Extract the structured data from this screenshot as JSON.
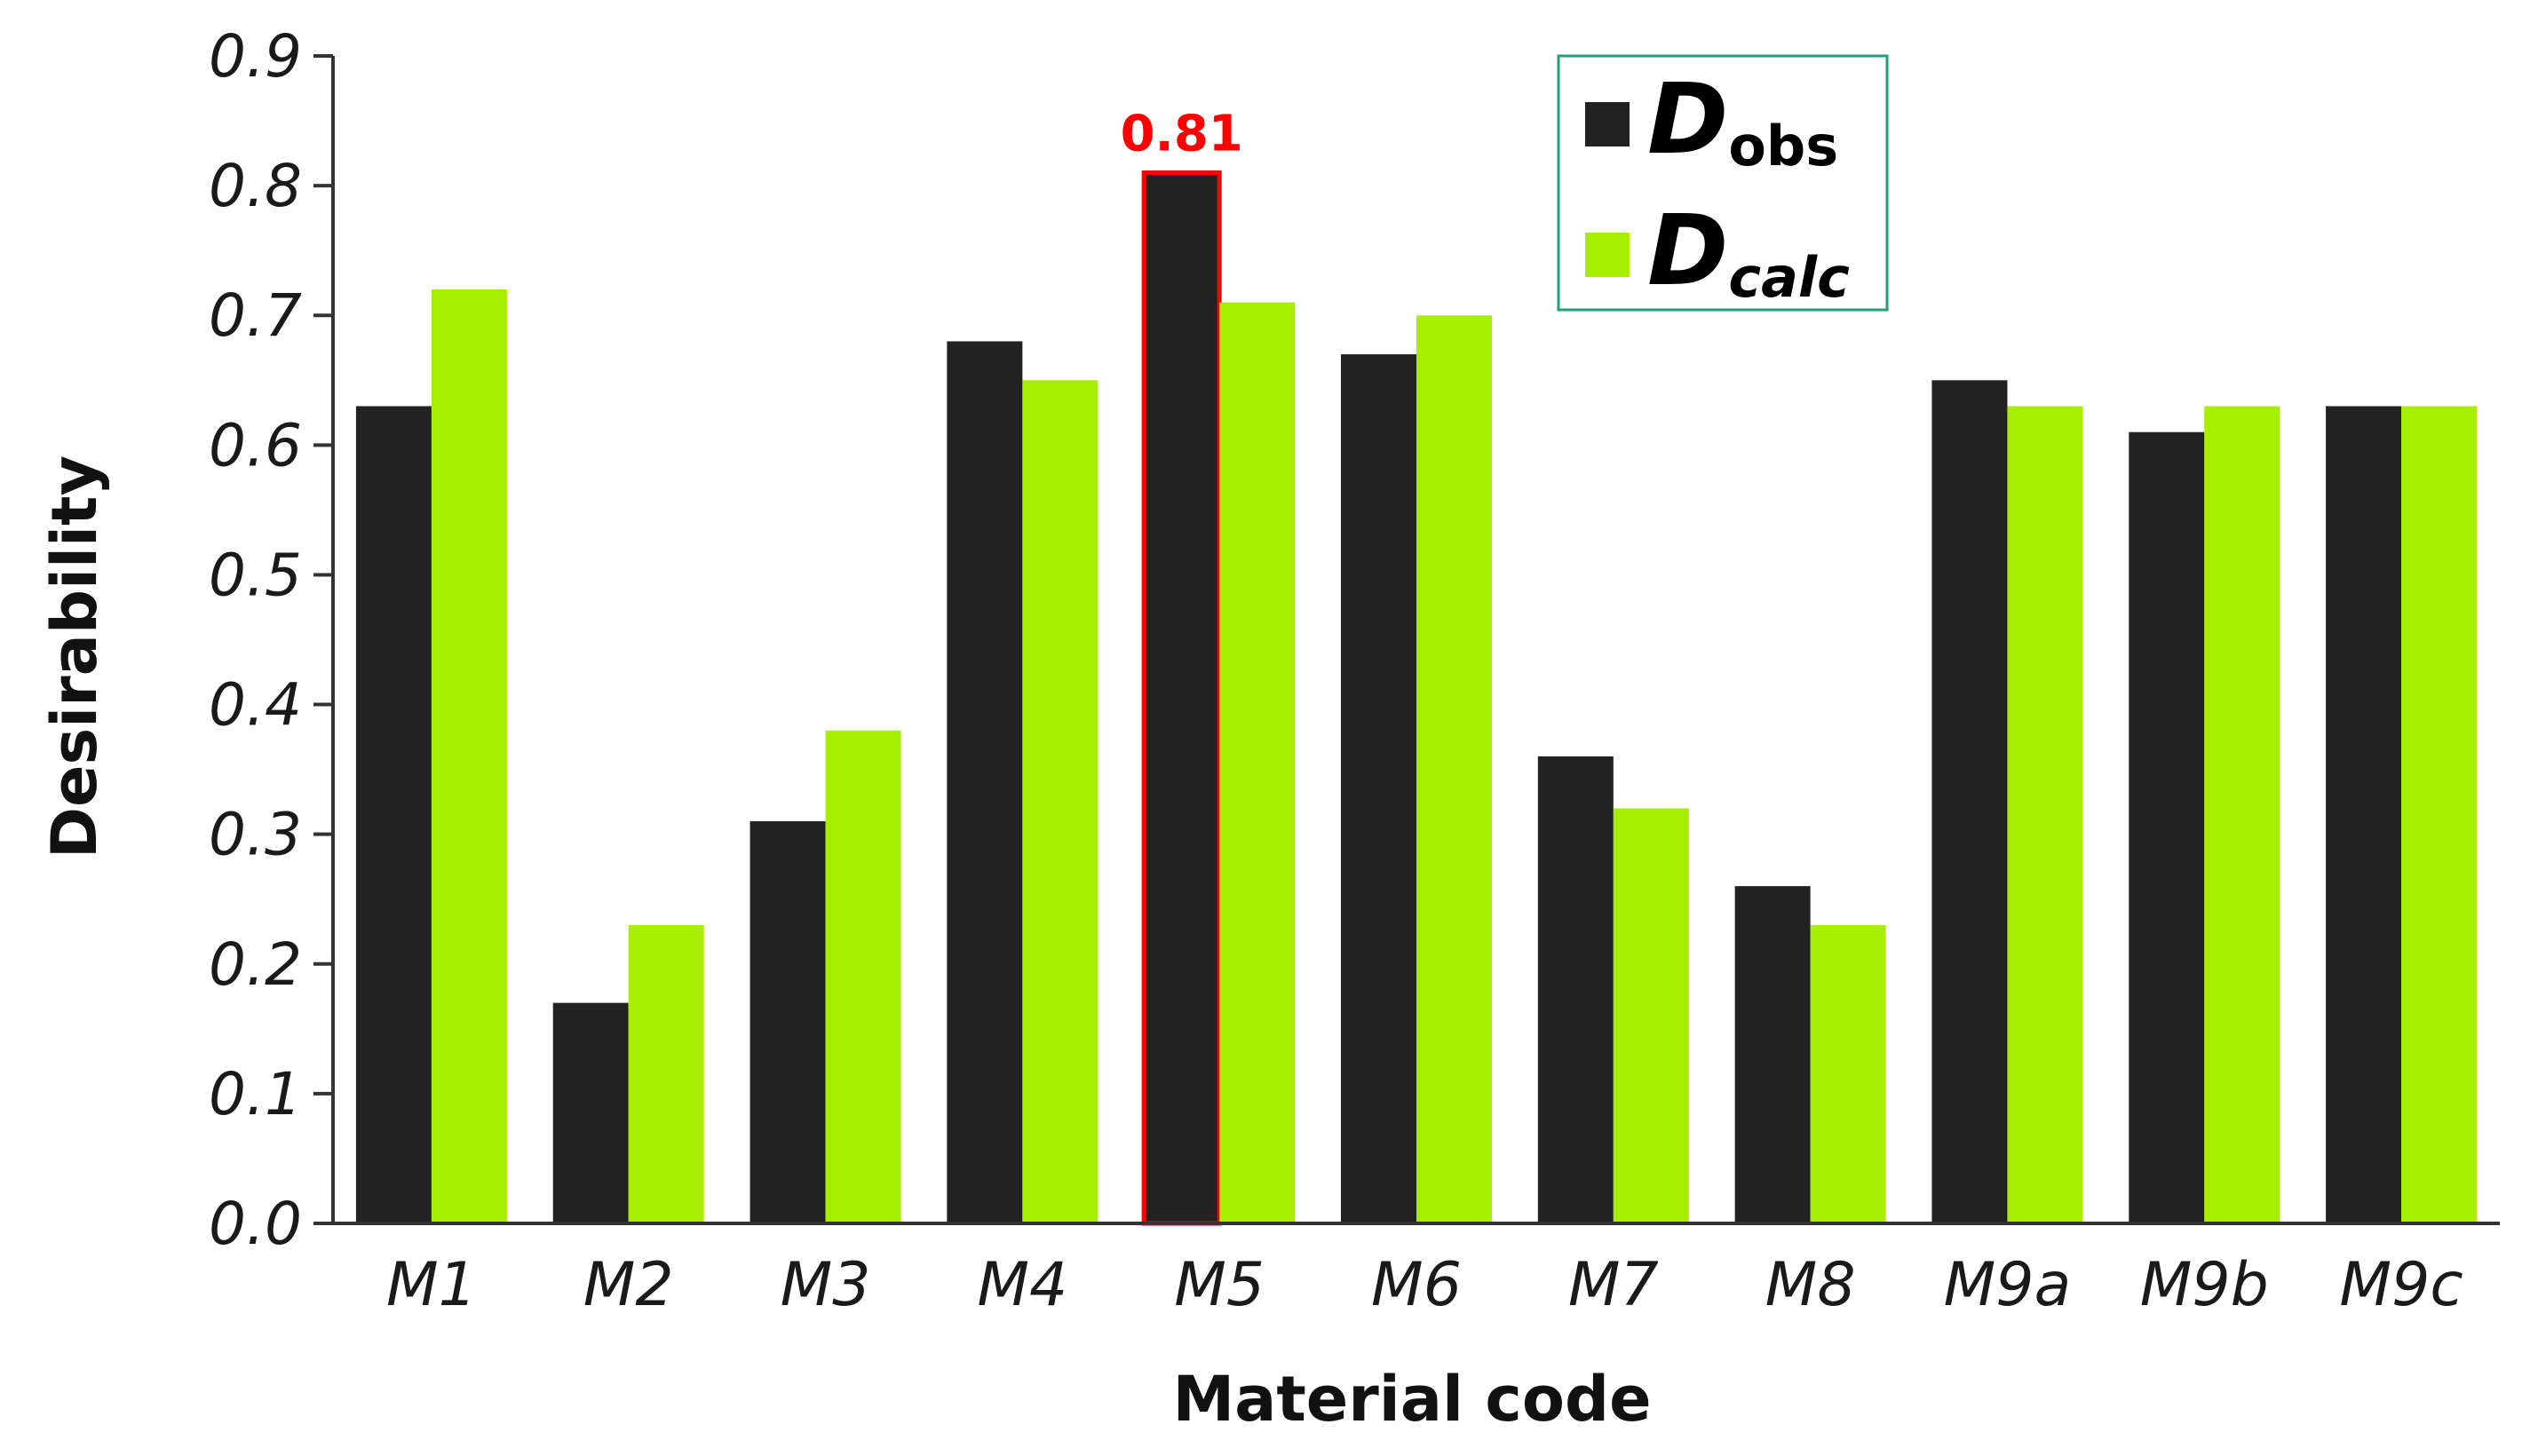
{
  "chart_data": {
    "type": "bar",
    "title": "",
    "xlabel": "Material code",
    "ylabel": "Desirability",
    "ylim": [
      0,
      0.9
    ],
    "yticks": [
      "0.0",
      "0.1",
      "0.2",
      "0.3",
      "0.4",
      "0.5",
      "0.6",
      "0.7",
      "0.8",
      "0.9"
    ],
    "categories": [
      "M1",
      "M2",
      "M3",
      "M4",
      "M5",
      "M6",
      "M7",
      "M8",
      "M9a",
      "M9b",
      "M9c"
    ],
    "series": [
      {
        "name_main": "D",
        "name_sub": "obs",
        "color": "#222222",
        "values": [
          0.63,
          0.17,
          0.31,
          0.68,
          0.81,
          0.67,
          0.36,
          0.26,
          0.65,
          0.61,
          0.63
        ]
      },
      {
        "name_main": "D",
        "name_sub": "calc",
        "color": "#a8ee00",
        "values": [
          0.72,
          0.23,
          0.38,
          0.65,
          0.71,
          0.7,
          0.32,
          0.23,
          0.63,
          0.63,
          0.63
        ]
      }
    ],
    "highlight": {
      "category": "M5",
      "series_index": 0,
      "label": "0.81",
      "color": "#ff0000"
    },
    "legend_position": "top-right",
    "grid": false
  }
}
